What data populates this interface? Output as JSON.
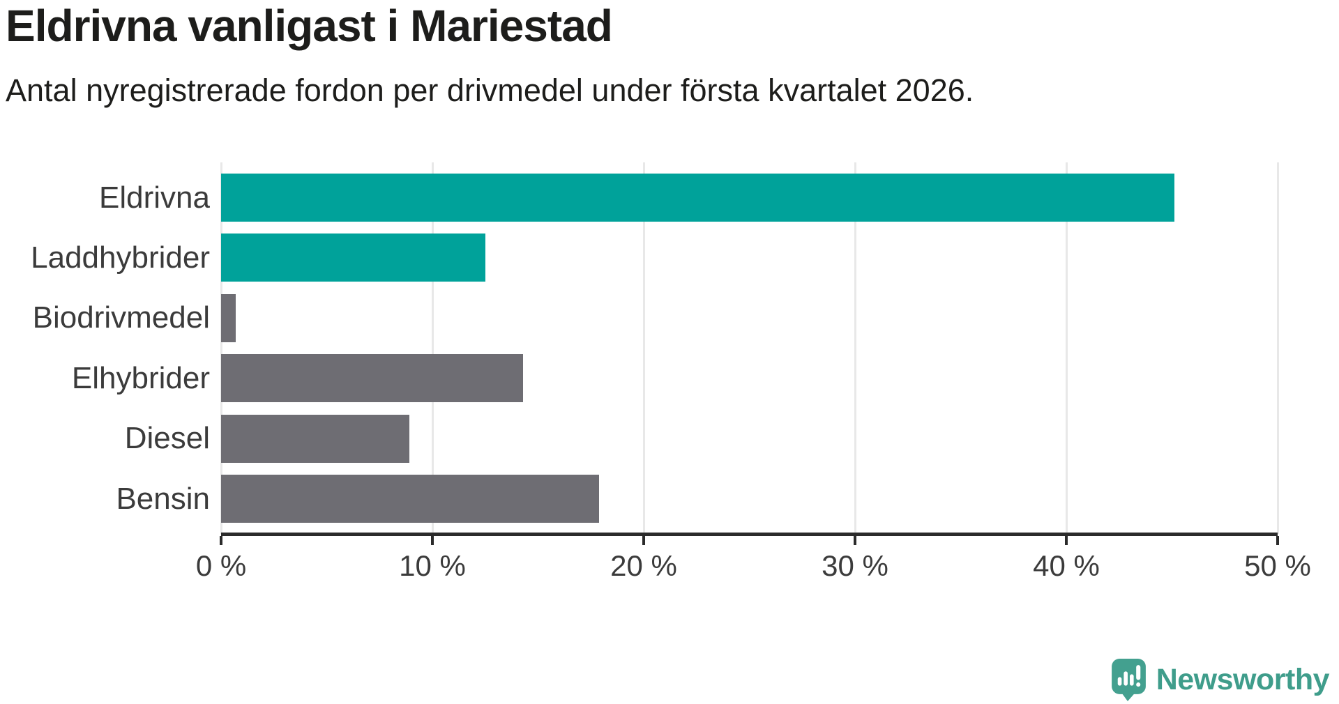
{
  "title": "Eldrivna vanligast i Mariestad",
  "subtitle": "Antal nyregistrerade fordon per drivmedel under första kvartalet 2026.",
  "chart_data": {
    "type": "bar",
    "orientation": "horizontal",
    "title": "Eldrivna vanligast i Mariestad",
    "subtitle": "Antal nyregistrerade fordon per drivmedel under första kvartalet 2026.",
    "categories": [
      "Eldrivna",
      "Laddhybrider",
      "Biodrivmedel",
      "Elhybrider",
      "Diesel",
      "Bensin"
    ],
    "values": [
      45.1,
      12.5,
      0.7,
      14.3,
      8.9,
      17.9
    ],
    "unit": "%",
    "xlim": [
      0,
      50
    ],
    "x_ticks": [
      0,
      10,
      20,
      30,
      40,
      50
    ],
    "x_tick_labels": [
      "0 %",
      "10 %",
      "20 %",
      "30 %",
      "40 %",
      "50 %"
    ],
    "grid": "vertical-gridlines-on",
    "legend": "none",
    "colors": {
      "highlight": "#00a29a",
      "base": "#6e6d73",
      "gridline": "#e8e8e8",
      "axis": "#2b2b2b"
    },
    "bar_colors": [
      "#00a29a",
      "#00a29a",
      "#6e6d73",
      "#6e6d73",
      "#6e6d73",
      "#6e6d73"
    ]
  },
  "branding": {
    "logo_text": "Newsworthy",
    "logo_color": "#3f9d8b",
    "logo_icon": "newsworthy-speech-bubble-chart-icon",
    "logo_icon_color": "#43a08f"
  }
}
